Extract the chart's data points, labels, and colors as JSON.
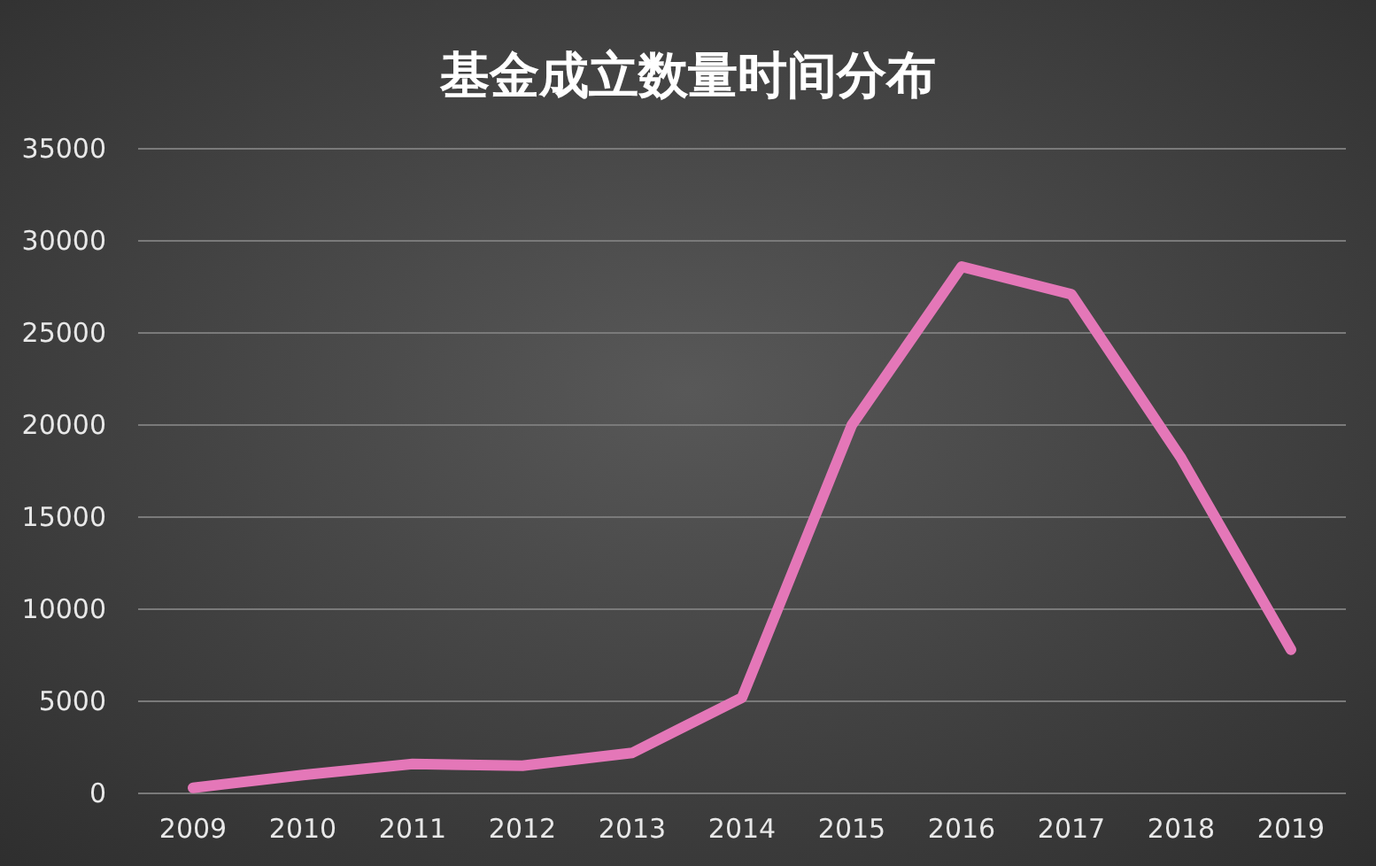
{
  "chart_data": {
    "type": "line",
    "title": "基金成立数量时间分布",
    "categories": [
      "2009",
      "2010",
      "2011",
      "2012",
      "2013",
      "2014",
      "2015",
      "2016",
      "2017",
      "2018",
      "2019"
    ],
    "series": [
      {
        "color": "#e477b8",
        "values": [
          300,
          1000,
          1600,
          1500,
          2200,
          5200,
          20000,
          28600,
          27100,
          18200,
          7800
        ]
      }
    ],
    "ylim": [
      0,
      35000
    ],
    "yticks": [
      0,
      5000,
      10000,
      15000,
      20000,
      25000,
      30000,
      35000
    ],
    "grid": "y",
    "marker": "none",
    "line_style": "solid"
  }
}
